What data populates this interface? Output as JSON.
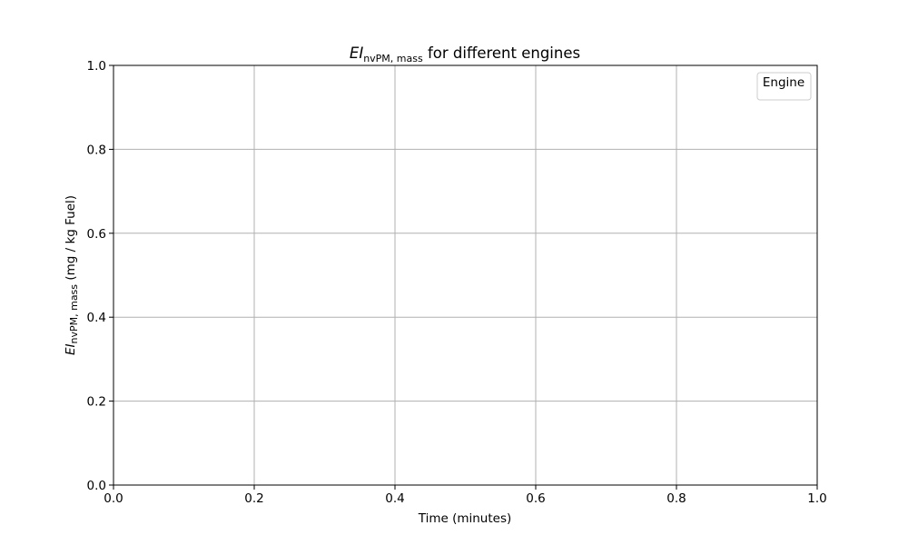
{
  "chart_data": {
    "type": "line",
    "title": {
      "italic": "EI",
      "subscript": "nvPM, mass",
      "rest": " for different engines"
    },
    "xlabel": "Time (minutes)",
    "ylabel": {
      "italic": "EI",
      "subscript": "nvPM, mass",
      "rest": " (mg / kg Fuel)"
    },
    "xlim": [
      0.0,
      1.0
    ],
    "ylim": [
      0.0,
      1.0
    ],
    "xticks": [
      0.0,
      0.2,
      0.4,
      0.6,
      0.8,
      1.0
    ],
    "yticks": [
      0.0,
      0.2,
      0.4,
      0.6,
      0.8,
      1.0
    ],
    "xtick_labels": [
      "0.0",
      "0.2",
      "0.4",
      "0.6",
      "0.8",
      "1.0"
    ],
    "ytick_labels": [
      "0.0",
      "0.2",
      "0.4",
      "0.6",
      "0.8",
      "1.0"
    ],
    "grid": true,
    "legend": {
      "title": "Engine",
      "placement": "top-right",
      "entries": []
    },
    "series": []
  },
  "colors": {
    "grid": "#b0b0b0",
    "axes": "#000000",
    "legend_border": "#cccccc"
  }
}
